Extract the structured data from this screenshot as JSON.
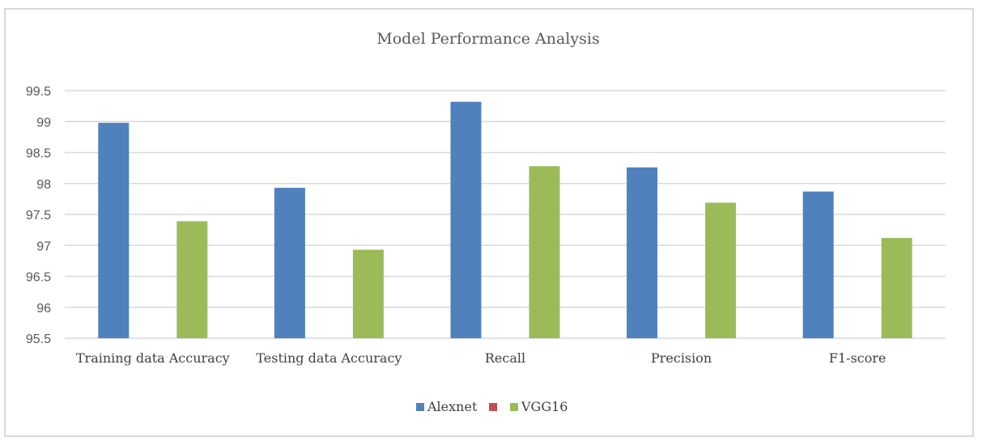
{
  "chart_data": {
    "type": "bar",
    "title": "Model Performance Analysis",
    "xlabel": "",
    "ylabel": "",
    "categories": [
      "Training data Accuracy",
      "Testing data Accuracy",
      "Recall",
      "Precision",
      "F1-score"
    ],
    "series": [
      {
        "name": "Alexnet",
        "color": "#4f81bd",
        "values": [
          98.98,
          97.93,
          99.32,
          98.26,
          97.87
        ]
      },
      {
        "name": "",
        "color": "#c0504d",
        "values": [
          95.5,
          95.5,
          95.5,
          95.5,
          95.5
        ]
      },
      {
        "name": "VGG16",
        "color": "#9bbb59",
        "values": [
          97.39,
          96.93,
          98.28,
          97.69,
          97.12
        ]
      }
    ],
    "ylim": [
      95.5,
      99.5
    ],
    "yticks": [
      "95.5",
      "96",
      "96.5",
      "97",
      "97.5",
      "98",
      "98.5",
      "99",
      "99.5"
    ],
    "grid": true,
    "legend_position": "bottom"
  }
}
